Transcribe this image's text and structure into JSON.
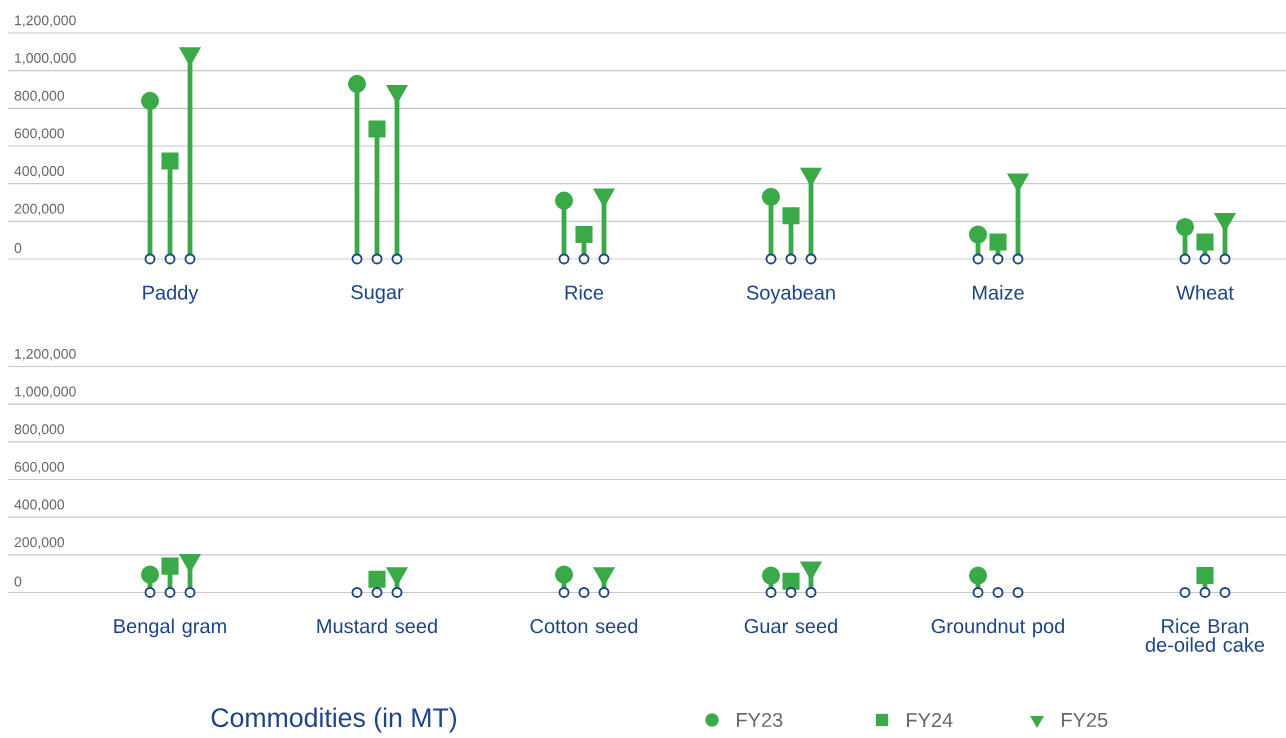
{
  "chart_data": [
    {
      "type": "lollipop",
      "categories": [
        "Paddy",
        "Sugar",
        "Rice",
        "Soyabean",
        "Maize",
        "Wheat"
      ],
      "series": [
        {
          "color": "#3aaa48",
          "marker": "circle",
          "values": [
            840000,
            930000,
            310000,
            330000,
            130000,
            170000
          ]
        },
        {
          "color": "#3aaa48",
          "marker": "square",
          "values": [
            520000,
            690000,
            130000,
            230000,
            90000,
            90000
          ]
        },
        {
          "color": "#3aaa48",
          "marker": "triangle",
          "values": [
            1090000,
            890000,
            340000,
            450000,
            420000,
            210000
          ]
        }
      ],
      "ylim": [
        0,
        1200000
      ],
      "yticks": [
        0,
        {
          "value": 200000,
          "label": "200,000"
        },
        {
          "value": 400000,
          "label": "400,000"
        },
        {
          "value": 600000,
          "label": "600,000"
        },
        {
          "value": 800000,
          "label": "800,000"
        },
        {
          "value": 1000000,
          "label": "1,000,000"
        },
        {
          "value": 1200000,
          "label": "1,200,000"
        }
      ],
      "grid": "y"
    },
    {
      "type": "lollipop",
      "categories": [
        "Bengal gram",
        "Mustard seed",
        "Cotton seed",
        "Guar seed",
        "Groundnut pod",
        "Rice Bran de-oiled cake"
      ],
      "xlabel": "Commodities (in MT)",
      "series": [
        {
          "name": "FY23",
          "color": "#3aaa48",
          "marker": "circle",
          "values": [
            95000,
            null,
            95000,
            90000,
            90000,
            null
          ]
        },
        {
          "name": "FY24",
          "color": "#3aaa48",
          "marker": "square",
          "values": [
            140000,
            70000,
            null,
            60000,
            null,
            90000
          ]
        },
        {
          "name": "FY25",
          "color": "#3aaa48",
          "marker": "triangle",
          "values": [
            170000,
            100000,
            100000,
            130000,
            null,
            null
          ]
        }
      ],
      "ylim": [
        0,
        1200000
      ],
      "yticks": [
        0,
        {
          "value": 200000,
          "label": "200,000"
        },
        {
          "value": 400000,
          "label": "400,000"
        },
        {
          "value": 600000,
          "label": "600,000"
        },
        {
          "value": 800000,
          "label": "800,000"
        },
        {
          "value": 1000000,
          "label": "1,000,000"
        },
        {
          "value": 1200000,
          "label": "1,200,000"
        }
      ],
      "grid": "y",
      "legend": "bottom"
    }
  ]
}
